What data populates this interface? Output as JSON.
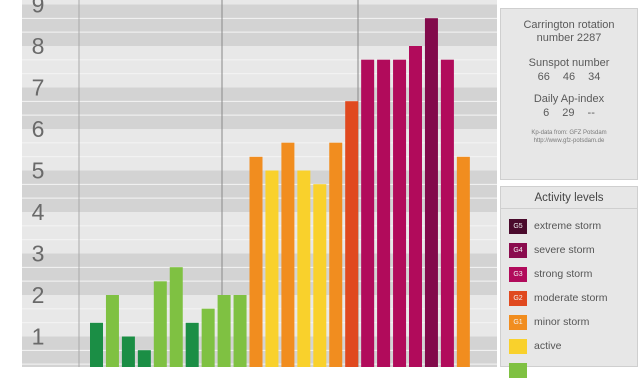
{
  "chart_data": {
    "type": "bar",
    "ylim": [
      0,
      9
    ],
    "y_ticks": [
      "1",
      "2",
      "3",
      "4",
      "5",
      "6",
      "7",
      "8",
      "9"
    ],
    "grid": true,
    "values": [
      1.33,
      2.0,
      1.0,
      0.67,
      2.33,
      2.67,
      1.33,
      1.67,
      2.0,
      2.0,
      5.33,
      5.0,
      5.67,
      5.0,
      4.67,
      5.67,
      6.67,
      7.67,
      7.67,
      7.67,
      8.0,
      8.67,
      7.67,
      5.33
    ],
    "colors": [
      "#1b8e45",
      "#7fc142",
      "#1b8e45",
      "#1b8e45",
      "#7fc142",
      "#7fc142",
      "#1b8e45",
      "#7fc142",
      "#7fc142",
      "#7fc142",
      "#f18d1f",
      "#f9d12c",
      "#f18d1f",
      "#f9d12c",
      "#f9d12c",
      "#f18d1f",
      "#e0491f",
      "#b10b5b",
      "#b10b5b",
      "#b10b5b",
      "#b10b5b",
      "#820a4b",
      "#b10b5b",
      "#f18d1f"
    ]
  },
  "info": {
    "carrington_label": "Carrington rotation number 2287",
    "sunspot_label": "Sunspot number",
    "sunspot_values": "66 46 34",
    "ap_label": "Daily Ap-index",
    "ap_values": "6 29 --",
    "credit_line1": "Kp-data from: GFZ Potsdam",
    "credit_line2": "http://www.gfz-potsdam.de"
  },
  "legend": {
    "title": "Activity levels",
    "items": [
      {
        "code": "G5",
        "label": "extreme storm",
        "color": "#4a0a2c"
      },
      {
        "code": "G4",
        "label": "severe storm",
        "color": "#8a0c4e"
      },
      {
        "code": "G3",
        "label": "strong storm",
        "color": "#b10b5b"
      },
      {
        "code": "G2",
        "label": "moderate storm",
        "color": "#e0491f"
      },
      {
        "code": "G1",
        "label": "minor storm",
        "color": "#f18d1f"
      },
      {
        "code": "",
        "label": "active",
        "color": "#f9d12c"
      },
      {
        "code": "",
        "label": "",
        "color": "#7fc142"
      }
    ]
  }
}
